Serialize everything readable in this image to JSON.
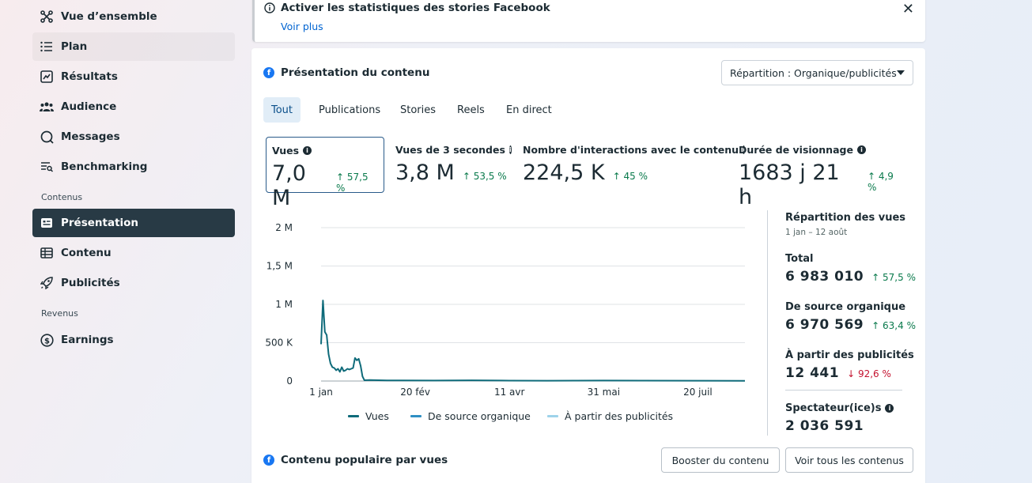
{
  "sidebar": {
    "items": [
      {
        "label": "Vue d’ensemble",
        "icon": "overview-icon"
      },
      {
        "label": "Plan",
        "icon": "list-icon"
      },
      {
        "label": "Résultats",
        "icon": "chart-line-icon"
      },
      {
        "label": "Audience",
        "icon": "people-icon"
      },
      {
        "label": "Messages",
        "icon": "message-icon"
      },
      {
        "label": "Benchmarking",
        "icon": "benchmark-icon"
      }
    ],
    "section_content": "Contenus",
    "content_items": [
      {
        "label": "Présentation",
        "icon": "presentation-icon"
      },
      {
        "label": "Contenu",
        "icon": "table-icon"
      },
      {
        "label": "Publicités",
        "icon": "rocket-icon"
      }
    ],
    "section_revenue": "Revenus",
    "revenue_items": [
      {
        "label": "Earnings",
        "icon": "dollar-icon"
      }
    ]
  },
  "banner": {
    "title": "Activer les statistiques des stories Facebook",
    "link": "Voir plus"
  },
  "overview": {
    "title": "Présentation du contenu",
    "dropdown": "Répartition : Organique/publicités",
    "tabs": [
      "Tout",
      "Publications",
      "Stories",
      "Reels",
      "En direct"
    ],
    "metrics": [
      {
        "label": "Vues",
        "value": "7,0 M",
        "delta": "57,5 %"
      },
      {
        "label": "Vues de 3 secondes",
        "value": "3,8 M",
        "delta": "53,5 %"
      },
      {
        "label": "Nombre d'interactions avec le contenu",
        "value": "224,5 K",
        "delta": "45 %"
      },
      {
        "label": "Durée de visionnage",
        "value": "1683 j 21 h",
        "delta": "4,9 %"
      }
    ]
  },
  "chart_data": {
    "type": "line",
    "y_ticks": [
      "2 M",
      "1,5 M",
      "1 M",
      "500 K",
      "0"
    ],
    "x_ticks": [
      "1 jan",
      "20 fév",
      "11 avr",
      "31 mai",
      "20 juil"
    ],
    "ylim": [
      0,
      2000000
    ],
    "x_range_days": [
      0,
      225
    ],
    "x_tick_days": [
      0,
      50,
      100,
      150,
      200
    ],
    "series": [
      {
        "name": "Vues",
        "color": "#0f6b7a",
        "points": [
          [
            0,
            480000
          ],
          [
            1,
            1050000
          ],
          [
            2,
            640000
          ],
          [
            3,
            600000
          ],
          [
            4,
            350000
          ],
          [
            5,
            230000
          ],
          [
            6,
            180000
          ],
          [
            7,
            170000
          ],
          [
            8,
            140000
          ],
          [
            9,
            160000
          ],
          [
            10,
            120000
          ],
          [
            11,
            180000
          ],
          [
            12,
            130000
          ],
          [
            13,
            140000
          ],
          [
            14,
            160000
          ],
          [
            15,
            150000
          ],
          [
            16,
            160000
          ],
          [
            17,
            170000
          ],
          [
            18,
            300000
          ],
          [
            19,
            270000
          ],
          [
            20,
            290000
          ],
          [
            21,
            200000
          ],
          [
            22,
            60000
          ],
          [
            23,
            10000
          ],
          [
            26,
            12000
          ],
          [
            35,
            8000
          ],
          [
            60,
            6000
          ],
          [
            80,
            9000
          ],
          [
            100,
            5000
          ],
          [
            120,
            4000
          ],
          [
            150,
            6000
          ],
          [
            170,
            5000
          ],
          [
            200,
            4000
          ],
          [
            225,
            3000
          ]
        ]
      },
      {
        "name": "De source organique",
        "color": "#2f8fc4",
        "points": []
      },
      {
        "name": "À partir des publicités",
        "color": "#9ed3ea",
        "points": []
      }
    ]
  },
  "breakdown": {
    "title": "Répartition des vues",
    "period": "1 jan – 12 août",
    "rows": [
      {
        "label": "Total",
        "value": "6 983 010",
        "delta": "57,5 %",
        "dir": "up"
      },
      {
        "label": "De source organique",
        "value": "6 970 569",
        "delta": "63,4 %",
        "dir": "up"
      },
      {
        "label": "À partir des publicités",
        "value": "12 441",
        "delta": "92,6 %",
        "dir": "down"
      }
    ],
    "viewers_label": "Spectateur(ice)s",
    "viewers_value": "2 036 591"
  },
  "popular": {
    "title": "Contenu populaire par vues",
    "boost_button": "Booster du contenu",
    "see_all_button": "Voir tous les contenus"
  }
}
